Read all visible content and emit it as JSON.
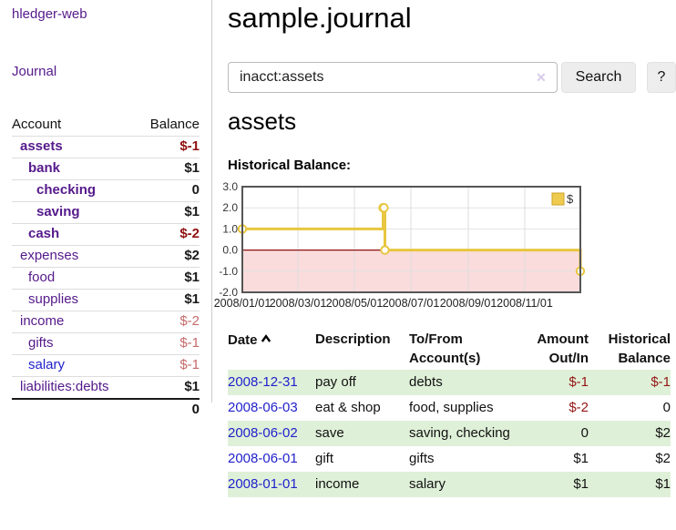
{
  "app": {
    "brand": "hledger-web",
    "nav": {
      "journal": "Journal"
    }
  },
  "colors": {
    "link_purple": "#551a8b",
    "link_blue": "#2222cc",
    "negative_strong": "#8f1010",
    "negative_soft": "#c56a6a",
    "row_stripe_green": "#dff0d8",
    "table_negative": "#941616"
  },
  "icons": {
    "clear_search": "✕",
    "sort_ascending": "chevron-up"
  },
  "sidebar": {
    "headers": {
      "account": "Account",
      "balance": "Balance"
    },
    "accounts": [
      {
        "name": "assets",
        "indent": 0,
        "bold": true,
        "balance": "$-1"
      },
      {
        "name": "bank",
        "indent": 1,
        "bold": true,
        "balance": "$1"
      },
      {
        "name": "checking",
        "indent": 2,
        "bold": true,
        "balance": "0"
      },
      {
        "name": "saving",
        "indent": 2,
        "bold": true,
        "balance": "$1"
      },
      {
        "name": "cash",
        "indent": 1,
        "bold": true,
        "balance": "$-2"
      },
      {
        "name": "expenses",
        "indent": 0,
        "bold": false,
        "balance": "$2"
      },
      {
        "name": "food",
        "indent": 1,
        "bold": false,
        "balance": "$1"
      },
      {
        "name": "supplies",
        "indent": 1,
        "bold": false,
        "balance": "$1"
      },
      {
        "name": "income",
        "indent": 0,
        "bold": false,
        "balance": "$-2"
      },
      {
        "name": "gifts",
        "indent": 1,
        "bold": false,
        "balance": "$-1"
      },
      {
        "name": "salary",
        "indent": 1,
        "bold": false,
        "balance": "$-1",
        "link": "blue"
      },
      {
        "name": "liabilities:debts",
        "indent": 0,
        "bold": false,
        "balance": "$1"
      }
    ],
    "total": "0"
  },
  "header": {
    "title": "sample.journal"
  },
  "search": {
    "value": "inacct:assets",
    "clear_icon": "✕",
    "button": "Search",
    "help_button": "?"
  },
  "main": {
    "account_title": "assets",
    "chart_label": "Historical Balance:"
  },
  "chart_data": {
    "type": "line",
    "interpolation": "step-after",
    "title": "Historical Balance",
    "x_range": [
      "2008-01-01",
      "2008-12-31"
    ],
    "ylim": [
      -2.0,
      3.0
    ],
    "y_ticks": [
      "3.0",
      "2.0",
      "1.0",
      "0.0",
      "-1.0",
      "-2.0"
    ],
    "x_ticks": [
      {
        "date": "2008-01-01",
        "label": "2008/01/01"
      },
      {
        "date": "2008-03-01",
        "label": "2008/03/01"
      },
      {
        "date": "2008-05-01",
        "label": "2008/05/01"
      },
      {
        "date": "2008-07-01",
        "label": "2008/07/01"
      },
      {
        "date": "2008-09-01",
        "label": "2008/09/01"
      },
      {
        "date": "2008-11-01",
        "label": "2008/11/01"
      }
    ],
    "series": [
      {
        "name": "$",
        "x": [
          "2008-01-01",
          "2008-06-01",
          "2008-06-02",
          "2008-06-03",
          "2008-12-31"
        ],
        "values": [
          1,
          2,
          2,
          0,
          -1
        ]
      }
    ],
    "legend": {
      "label": "$",
      "position": "top-right"
    },
    "grid": true,
    "colors": {
      "line": "#e8c63f",
      "marker_fill": "#ffffff",
      "zero_line": "#8f1010",
      "negative_region": "#fadcdc",
      "legend_fill": "#eecb4e",
      "border": "#555555"
    }
  },
  "transactions": {
    "headers": {
      "date": "Date",
      "description": "Description",
      "tofrom1": "To/From",
      "tofrom2": "Account(s)",
      "amount1": "Amount",
      "amount2": "Out/In",
      "balance1": "Historical",
      "balance2": "Balance"
    },
    "rows": [
      {
        "date": "2008-12-31",
        "description": "pay off",
        "accounts": "debts",
        "amount": "$-1",
        "balance": "$-1"
      },
      {
        "date": "2008-06-03",
        "description": "eat & shop",
        "accounts": "food, supplies",
        "amount": "$-2",
        "balance": "0"
      },
      {
        "date": "2008-06-02",
        "description": "save",
        "accounts": "saving, checking",
        "amount": "0",
        "balance": "$2"
      },
      {
        "date": "2008-06-01",
        "description": "gift",
        "accounts": "gifts",
        "amount": "$1",
        "balance": "$2"
      },
      {
        "date": "2008-01-01",
        "description": "income",
        "accounts": "salary",
        "amount": "$1",
        "balance": "$1"
      }
    ]
  }
}
